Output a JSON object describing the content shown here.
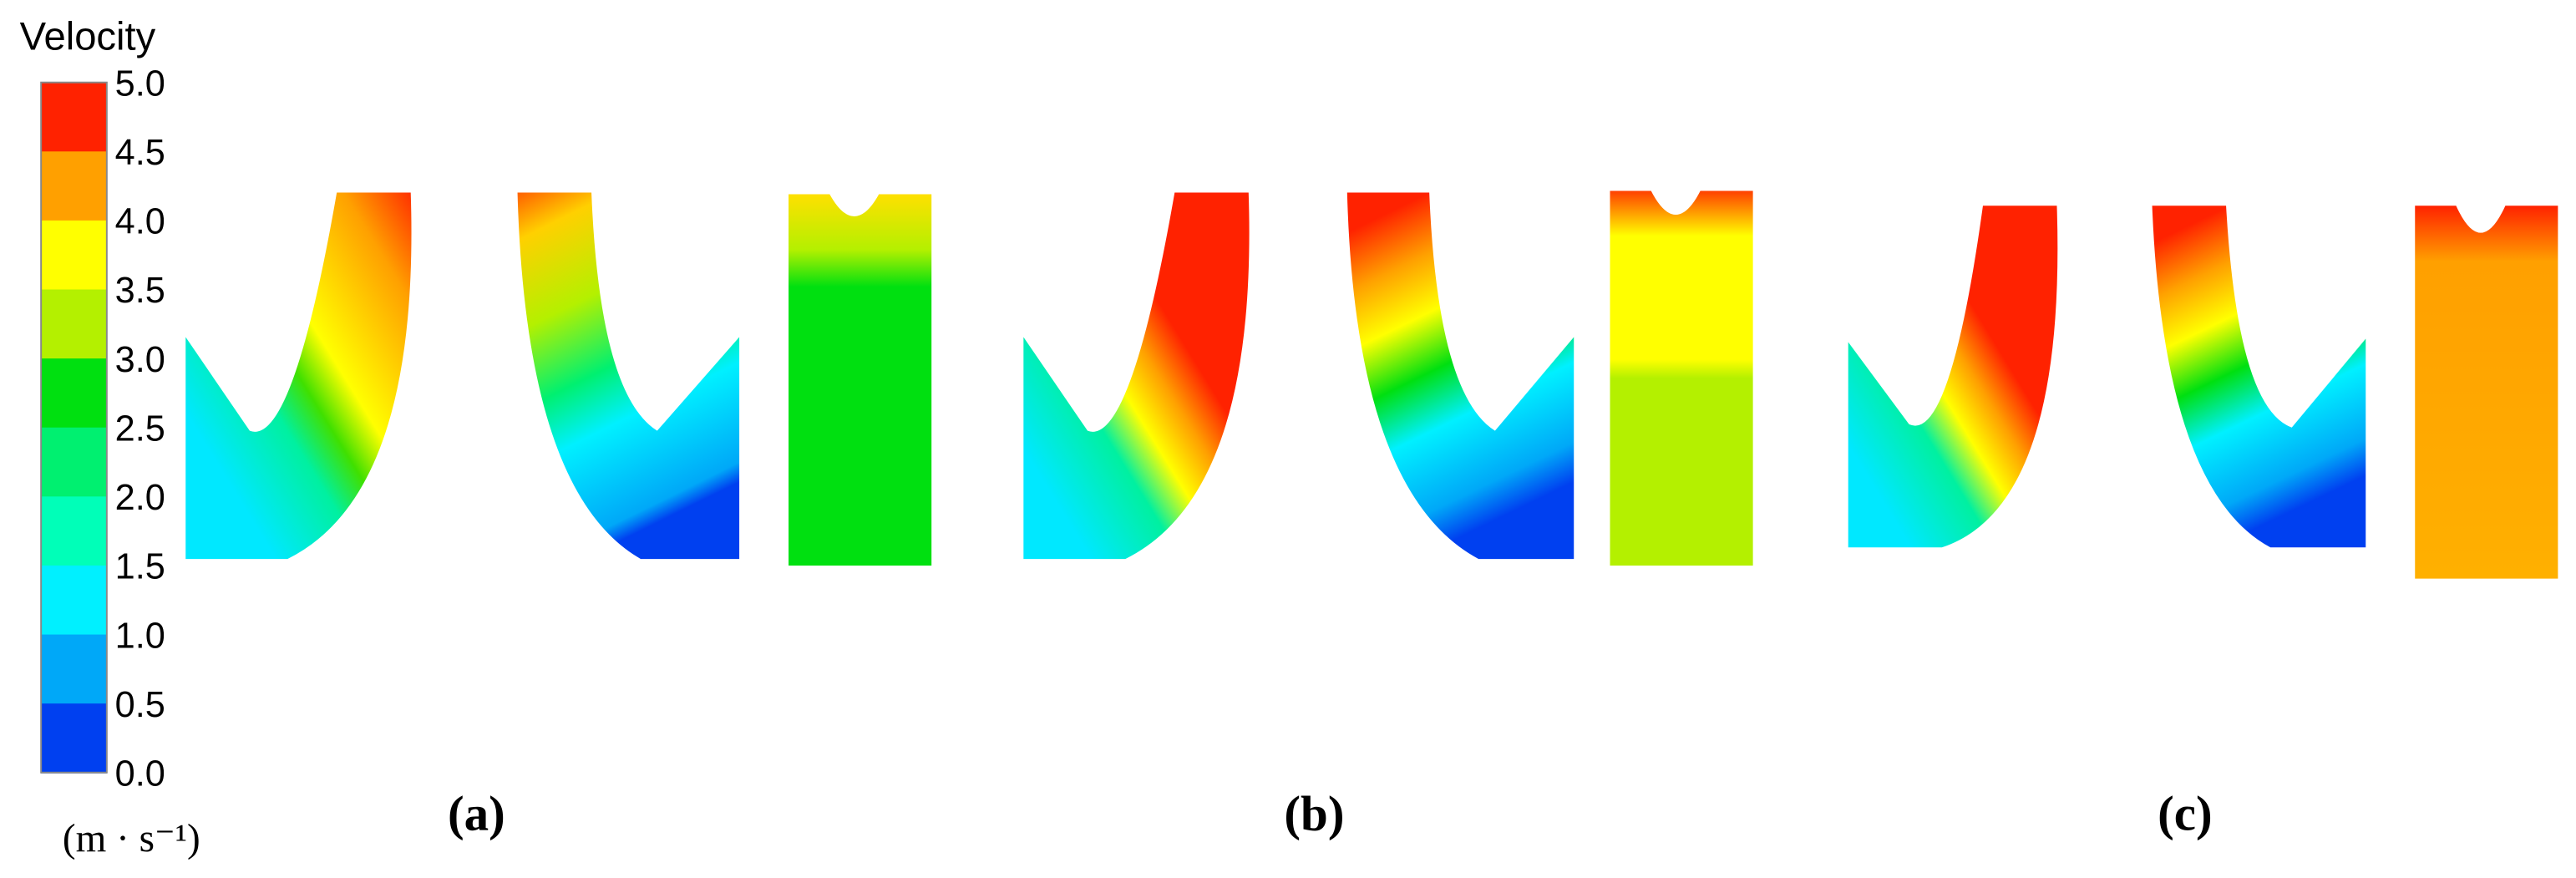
{
  "legend": {
    "title": "Velocity",
    "ticks": [
      "5.0",
      "4.5",
      "4.0",
      "3.5",
      "3.0",
      "2.5",
      "2.0",
      "1.5",
      "1.0",
      "0.5",
      "0.0"
    ],
    "colors": [
      "#ff2200",
      "#ffa000",
      "#ffff00",
      "#b4f000",
      "#00e010",
      "#00f070",
      "#00ffb8",
      "#00f0ff",
      "#00a8f8",
      "#0040f0"
    ],
    "unit": "(m · s⁻¹)"
  },
  "panels": [
    "(a)",
    "(b)",
    "(c)"
  ]
}
